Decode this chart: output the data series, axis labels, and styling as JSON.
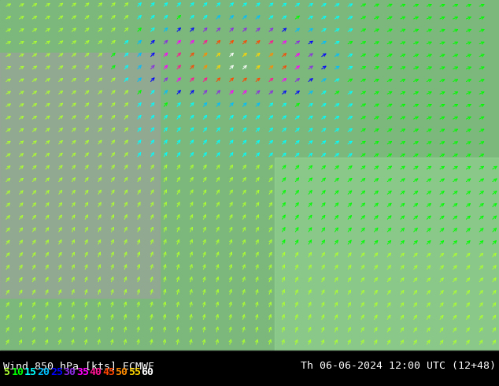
{
  "title_left": "Wind 850 hPa [kts] ECMWF",
  "title_right": "Th 06-06-2024 12:00 UTC (12+48)",
  "legend_values": [
    "5",
    "10",
    "15",
    "20",
    "25",
    "30",
    "35",
    "40",
    "45",
    "50",
    "55",
    "60"
  ],
  "legend_colors": [
    "#adff2f",
    "#00ff00",
    "#00ffff",
    "#00bfff",
    "#0000ff",
    "#8a2be2",
    "#ff00ff",
    "#ff1493",
    "#ff4500",
    "#ff8c00",
    "#ffd700",
    "#ffffff"
  ],
  "bg_color": "#000000",
  "fig_width": 6.34,
  "fig_height": 4.9,
  "dpi": 100,
  "title_font_size": 9.5,
  "legend_font_size": 9.5,
  "title_color": "#ffffff",
  "map_top_color": "#90ee90",
  "bottom_bar_height": 0.092
}
